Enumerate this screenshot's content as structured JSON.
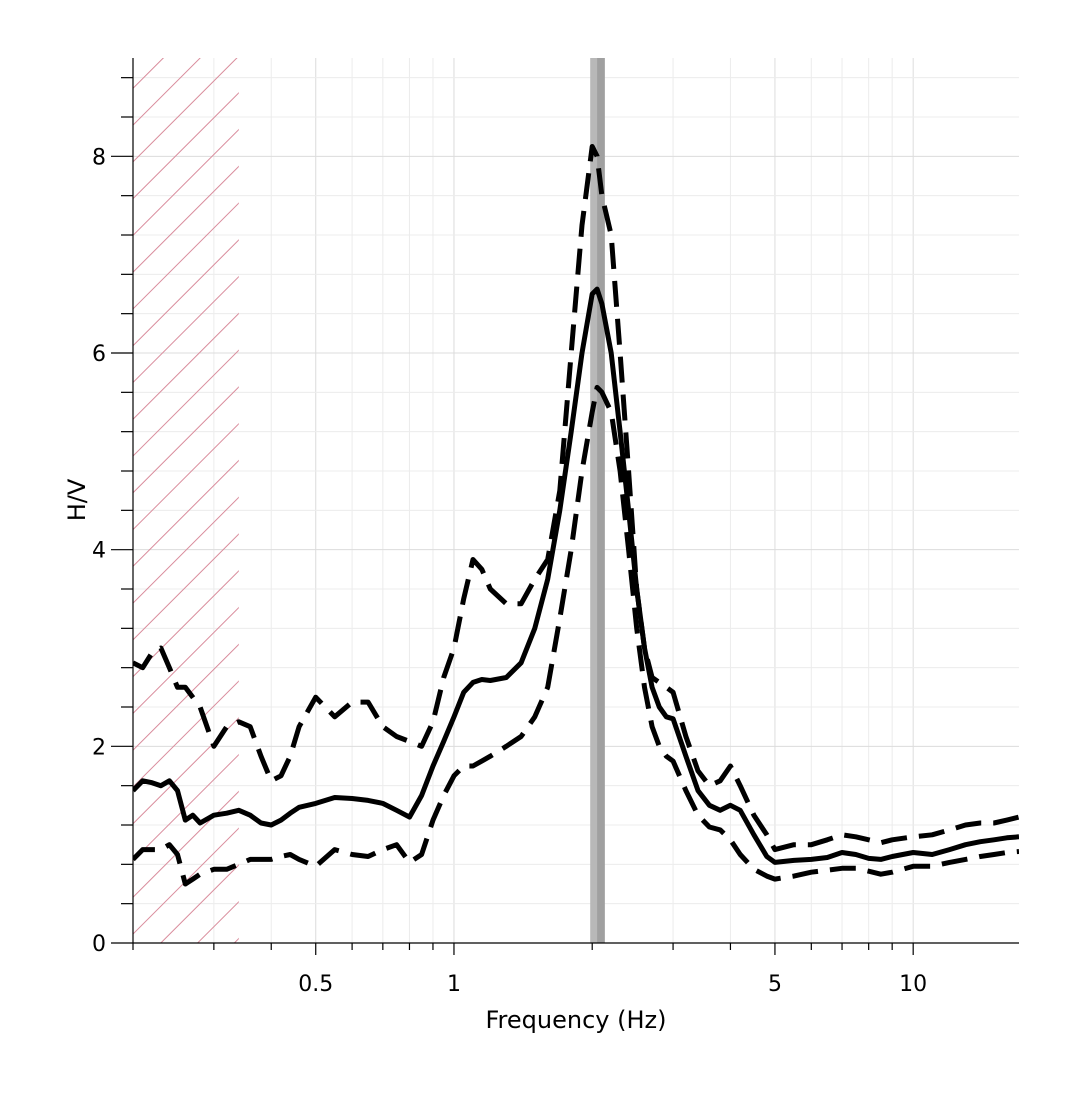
{
  "chart_data": {
    "type": "line",
    "xlabel": "Frequency (Hz)",
    "ylabel": "H/V",
    "x_scale": "log",
    "xlim": [
      0.2,
      17
    ],
    "ylim": [
      0,
      9
    ],
    "grid": true,
    "x_ticks": [
      {
        "value": 0.5,
        "label": "0.5"
      },
      {
        "value": 1,
        "label": "1"
      },
      {
        "value": 5,
        "label": "5"
      },
      {
        "value": 10,
        "label": "10"
      }
    ],
    "y_ticks": [
      {
        "value": 0,
        "label": "0"
      },
      {
        "value": 2,
        "label": "2"
      },
      {
        "value": 4,
        "label": "4"
      },
      {
        "value": 6,
        "label": "6"
      },
      {
        "value": 8,
        "label": "8"
      }
    ],
    "excluded_band": {
      "from": 0.2,
      "to": 0.34,
      "color": "#d98c9c"
    },
    "peak_band": {
      "center": 2.05,
      "from": 1.98,
      "to": 2.13,
      "color": "#a0a0a0",
      "inner_color": "#b8b8b8"
    },
    "series": [
      {
        "role": "mean",
        "style": "solid",
        "color": "#000000",
        "x": [
          0.2,
          0.21,
          0.22,
          0.23,
          0.24,
          0.25,
          0.26,
          0.27,
          0.28,
          0.3,
          0.32,
          0.34,
          0.36,
          0.38,
          0.4,
          0.42,
          0.44,
          0.46,
          0.5,
          0.55,
          0.6,
          0.65,
          0.7,
          0.75,
          0.8,
          0.85,
          0.9,
          0.95,
          1.0,
          1.05,
          1.1,
          1.15,
          1.2,
          1.3,
          1.4,
          1.5,
          1.6,
          1.7,
          1.8,
          1.9,
          2.0,
          2.05,
          2.1,
          2.2,
          2.3,
          2.4,
          2.5,
          2.6,
          2.7,
          2.8,
          2.9,
          3.0,
          3.2,
          3.4,
          3.6,
          3.8,
          4.0,
          4.2,
          4.5,
          4.8,
          5.0,
          5.5,
          6.0,
          6.5,
          7.0,
          7.5,
          8.0,
          8.5,
          9.0,
          10.0,
          11.0,
          12.0,
          13.0,
          14.0,
          15.0,
          16.0,
          17.0
        ],
        "y": [
          1.55,
          1.65,
          1.63,
          1.6,
          1.65,
          1.55,
          1.25,
          1.3,
          1.22,
          1.3,
          1.32,
          1.35,
          1.3,
          1.22,
          1.2,
          1.25,
          1.32,
          1.38,
          1.42,
          1.48,
          1.47,
          1.45,
          1.42,
          1.35,
          1.28,
          1.5,
          1.8,
          2.05,
          2.3,
          2.55,
          2.65,
          2.68,
          2.67,
          2.7,
          2.85,
          3.2,
          3.7,
          4.4,
          5.2,
          6.0,
          6.6,
          6.65,
          6.5,
          6.0,
          5.2,
          4.4,
          3.6,
          3.0,
          2.6,
          2.4,
          2.3,
          2.28,
          1.9,
          1.55,
          1.4,
          1.35,
          1.4,
          1.35,
          1.1,
          0.88,
          0.82,
          0.84,
          0.85,
          0.87,
          0.92,
          0.9,
          0.86,
          0.85,
          0.88,
          0.92,
          0.9,
          0.95,
          1.0,
          1.03,
          1.05,
          1.07,
          1.08
        ]
      },
      {
        "role": "upper",
        "style": "dashed",
        "color": "#000000",
        "x": [
          0.2,
          0.21,
          0.22,
          0.23,
          0.24,
          0.25,
          0.26,
          0.27,
          0.28,
          0.3,
          0.32,
          0.34,
          0.36,
          0.38,
          0.4,
          0.42,
          0.44,
          0.46,
          0.5,
          0.55,
          0.6,
          0.65,
          0.7,
          0.75,
          0.8,
          0.85,
          0.9,
          0.95,
          1.0,
          1.05,
          1.1,
          1.15,
          1.2,
          1.3,
          1.4,
          1.5,
          1.6,
          1.7,
          1.8,
          1.9,
          2.0,
          2.05,
          2.1,
          2.2,
          2.3,
          2.4,
          2.5,
          2.6,
          2.7,
          2.8,
          2.9,
          3.0,
          3.2,
          3.4,
          3.6,
          3.8,
          4.0,
          4.2,
          4.5,
          4.8,
          5.0,
          5.5,
          6.0,
          6.5,
          7.0,
          7.5,
          8.0,
          8.5,
          9.0,
          10.0,
          11.0,
          12.0,
          13.0,
          14.0,
          15.0,
          16.0,
          17.0
        ],
        "y": [
          2.85,
          2.8,
          2.95,
          3.0,
          2.8,
          2.6,
          2.6,
          2.5,
          2.4,
          2.0,
          2.2,
          2.25,
          2.2,
          1.9,
          1.65,
          1.7,
          1.9,
          2.2,
          2.5,
          2.3,
          2.45,
          2.45,
          2.2,
          2.1,
          2.05,
          2.0,
          2.25,
          2.7,
          3.0,
          3.5,
          3.9,
          3.8,
          3.6,
          3.45,
          3.45,
          3.7,
          3.9,
          4.6,
          6.0,
          7.3,
          8.1,
          8.0,
          7.6,
          7.2,
          6.0,
          4.8,
          3.6,
          3.0,
          2.7,
          2.65,
          2.6,
          2.55,
          2.1,
          1.75,
          1.6,
          1.65,
          1.8,
          1.6,
          1.3,
          1.1,
          0.95,
          1.0,
          1.0,
          1.05,
          1.1,
          1.08,
          1.05,
          1.02,
          1.05,
          1.08,
          1.1,
          1.15,
          1.2,
          1.22,
          1.22,
          1.25,
          1.28
        ]
      },
      {
        "role": "lower",
        "style": "dashed",
        "color": "#000000",
        "x": [
          0.2,
          0.21,
          0.22,
          0.23,
          0.24,
          0.25,
          0.26,
          0.27,
          0.28,
          0.3,
          0.32,
          0.34,
          0.36,
          0.38,
          0.4,
          0.42,
          0.44,
          0.46,
          0.5,
          0.55,
          0.6,
          0.65,
          0.7,
          0.75,
          0.8,
          0.85,
          0.9,
          0.95,
          1.0,
          1.05,
          1.1,
          1.15,
          1.2,
          1.3,
          1.4,
          1.5,
          1.6,
          1.7,
          1.8,
          1.9,
          2.0,
          2.05,
          2.1,
          2.2,
          2.3,
          2.4,
          2.5,
          2.6,
          2.7,
          2.8,
          2.9,
          3.0,
          3.2,
          3.4,
          3.6,
          3.8,
          4.0,
          4.2,
          4.5,
          4.8,
          5.0,
          5.5,
          6.0,
          6.5,
          7.0,
          7.5,
          8.0,
          8.5,
          9.0,
          10.0,
          11.0,
          12.0,
          13.0,
          14.0,
          15.0,
          16.0,
          17.0
        ],
        "y": [
          0.85,
          0.95,
          0.95,
          0.95,
          1.0,
          0.9,
          0.6,
          0.65,
          0.7,
          0.75,
          0.75,
          0.8,
          0.85,
          0.85,
          0.85,
          0.88,
          0.9,
          0.85,
          0.78,
          0.95,
          0.9,
          0.88,
          0.95,
          1.0,
          0.82,
          0.9,
          1.25,
          1.5,
          1.7,
          1.8,
          1.8,
          1.85,
          1.9,
          2.0,
          2.1,
          2.3,
          2.6,
          3.3,
          4.0,
          4.8,
          5.4,
          5.65,
          5.6,
          5.4,
          4.8,
          4.0,
          3.2,
          2.6,
          2.2,
          2.0,
          1.9,
          1.85,
          1.55,
          1.3,
          1.18,
          1.15,
          1.05,
          0.9,
          0.75,
          0.68,
          0.65,
          0.68,
          0.72,
          0.74,
          0.76,
          0.76,
          0.73,
          0.7,
          0.72,
          0.78,
          0.78,
          0.82,
          0.85,
          0.88,
          0.9,
          0.92,
          0.93
        ]
      }
    ]
  }
}
